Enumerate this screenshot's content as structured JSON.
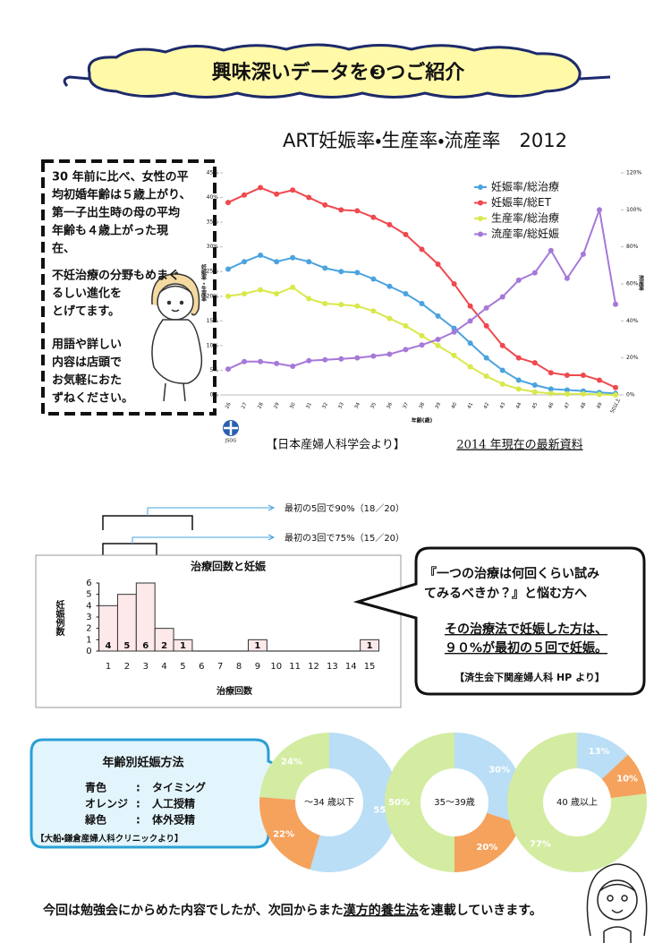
{
  "header": {
    "title": "興味深いデータを❸つご紹介"
  },
  "note": {
    "lines": [
      "30 年前に比べ、女性の平",
      "均初婚年齢は５歳上がり、",
      "第一子出生時の母の平均",
      "年齢も４歳上がった現",
      "在、",
      "不妊治療の分野もめまぐ",
      "るしい進化を",
      "とげてます。",
      "用語や詳しい",
      "内容は店頭で",
      "お気軽におた",
      "ずねください。"
    ]
  },
  "source": {
    "logo": "JSOG",
    "society": "【日本産婦人科学会より】",
    "date": "2014 年現在の最新資料"
  },
  "bar_notes": [
    "最初の5回で90%（18／20）",
    "最初の3回で75%（15／20）"
  ],
  "bubble": {
    "question": [
      "『一つの治療は何回くらい試み",
      "てみるべきか？』と悩む方へ"
    ],
    "answer": [
      "その治療法で妊娠した方は、",
      "９０%が最初の５回で妊娠。"
    ],
    "source": "【済生会下関産婦人科 HP より】"
  },
  "method_box": {
    "title": "年齢別妊娠方法",
    "rows": [
      [
        "青色",
        ":",
        "タイミング"
      ],
      [
        "オレンジ",
        ":",
        "人工授精"
      ],
      [
        "緑色",
        ":",
        "体外受精"
      ]
    ],
    "source": "【大船・鎌倉産婦人科クリニックより】"
  },
  "footer": {
    "parts": [
      "今回は勉強会にからめた内容でしたが、次回からまた",
      "漢方的養生法",
      "を連載していきます。"
    ]
  },
  "chart_data": [
    {
      "type": "line",
      "title": "ART妊娠率・生産率・流産率　2012",
      "xlabel": "年齢(歳)",
      "ylabel": "妊娠率・生産率",
      "y2label": "流産率",
      "categories": [
        "26",
        "27",
        "28",
        "29",
        "30",
        "31",
        "32",
        "33",
        "34",
        "35",
        "36",
        "37",
        "38",
        "39",
        "40",
        "41",
        "42",
        "43",
        "44",
        "45",
        "46",
        "47",
        "48",
        "49",
        "50以上"
      ],
      "ylim": [
        0,
        45
      ],
      "yticks": [
        {
          "value": 0,
          "label": "0%"
        },
        {
          "value": 5,
          "label": "5%"
        },
        {
          "value": 10,
          "label": "10%"
        },
        {
          "value": 15,
          "label": "15%"
        },
        {
          "value": 20,
          "label": "20%"
        },
        {
          "value": 25,
          "label": "25%"
        },
        {
          "value": 30,
          "label": "30%"
        },
        {
          "value": 35,
          "label": "35%"
        },
        {
          "value": 40,
          "label": "40%"
        },
        {
          "value": 45,
          "label": "45%"
        }
      ],
      "y2lim": [
        0,
        120
      ],
      "y2ticks": [
        {
          "value": 0,
          "label": "0%"
        },
        {
          "value": 20,
          "label": "20%"
        },
        {
          "value": 40,
          "label": "40%"
        },
        {
          "value": 60,
          "label": "60%"
        },
        {
          "value": 80,
          "label": "80%"
        },
        {
          "value": 100,
          "label": "100%"
        },
        {
          "value": 120,
          "label": "120%"
        }
      ],
      "legend": "upper right",
      "series": [
        {
          "name": "妊娠率/総治療",
          "color": "#4aa3df",
          "values": [
            25.5,
            27,
            28.3,
            27,
            27.8,
            27,
            25.7,
            25,
            24.8,
            23.5,
            22,
            20.5,
            18.5,
            16,
            13.5,
            10.5,
            7.5,
            5,
            3,
            2,
            1.2,
            1,
            0.8,
            0.5,
            0.3
          ]
        },
        {
          "name": "妊娠率/総ET",
          "color": "#f0484e",
          "values": [
            39,
            40.5,
            42,
            40.7,
            41.5,
            40,
            38.5,
            37.5,
            37.3,
            36,
            34.5,
            32.5,
            29.5,
            26.5,
            22.5,
            18,
            14,
            10,
            7.5,
            6.5,
            4.5,
            4,
            4,
            3,
            1.5
          ]
        },
        {
          "name": "生産率/総治療",
          "color": "#d9e84a",
          "values": [
            20,
            20.5,
            21.3,
            20.5,
            21.8,
            19.5,
            18.5,
            18.3,
            18,
            17,
            15.5,
            14,
            12,
            10,
            8,
            5.7,
            3.8,
            2.2,
            1.2,
            0.6,
            0.3,
            0.2,
            0.2,
            0.1,
            0
          ]
        },
        {
          "name": "流産率/総妊娠",
          "color": "#a678d8",
          "axis": "y2",
          "values": [
            14,
            18,
            18,
            17,
            15.5,
            18.5,
            19,
            19.5,
            20,
            21,
            22,
            24.5,
            27,
            30,
            34,
            40,
            47,
            53,
            62,
            66,
            78,
            63,
            76,
            100,
            49
          ]
        }
      ]
    },
    {
      "type": "bar",
      "title": "治療回数と妊娠",
      "xlabel": "治療回数",
      "ylabel": "妊娠例数",
      "categories": [
        "1",
        "2",
        "3",
        "4",
        "5",
        "6",
        "7",
        "8",
        "9",
        "10",
        "11",
        "12",
        "13",
        "14",
        "15"
      ],
      "values": [
        4,
        5,
        6,
        2,
        1,
        0,
        0,
        0,
        1,
        0,
        0,
        0,
        0,
        0,
        1
      ],
      "color": "#fde9ea",
      "ylim": [
        0,
        6
      ],
      "yticks": [
        0,
        1,
        2,
        3,
        4,
        5,
        6
      ]
    },
    {
      "type": "pie",
      "title": "～34 歳以下",
      "values": [
        55,
        22,
        24
      ],
      "value_labels": [
        "55%",
        "22%",
        "24%"
      ],
      "colors": [
        "#b9def5",
        "#f5a25d",
        "#d3eca2"
      ]
    },
    {
      "type": "pie",
      "title": "35～39歳",
      "values": [
        30,
        20,
        50
      ],
      "value_labels": [
        "30%",
        "20%",
        "50%"
      ],
      "colors": [
        "#b9def5",
        "#f5a25d",
        "#d3eca2"
      ]
    },
    {
      "type": "pie",
      "title": "40 歳以上",
      "values": [
        13,
        10,
        77
      ],
      "value_labels": [
        "13%",
        "10%",
        "77%"
      ],
      "colors": [
        "#b9def5",
        "#f5a25d",
        "#d3eca2"
      ]
    }
  ]
}
